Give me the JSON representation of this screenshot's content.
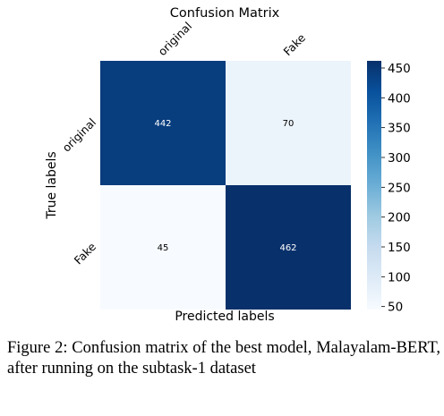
{
  "chart_data": {
    "type": "heatmap",
    "title": "Confusion Matrix",
    "xlabel": "Predicted labels",
    "ylabel": "True labels",
    "x_categories": [
      "original",
      "Fake"
    ],
    "y_categories": [
      "original",
      "Fake"
    ],
    "values": [
      [
        442,
        70
      ],
      [
        45,
        462
      ]
    ],
    "colormap": "Blues",
    "color_range": [
      45,
      462
    ],
    "colorbar_ticks": [
      50,
      100,
      150,
      200,
      250,
      300,
      350,
      400,
      450
    ],
    "cell_label_dark_color": "#000000",
    "cell_label_light_color": "#ffffff"
  },
  "caption": "Figure 2: Confusion matrix of the best model, Malayalam-BERT, after running on the subtask-1 dataset"
}
